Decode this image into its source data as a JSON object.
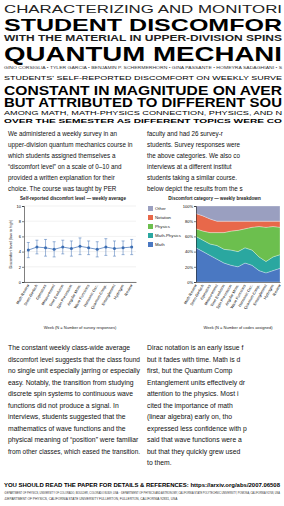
{
  "header": {
    "title": [
      "CHARACTERIZING AND MONITORI",
      "STUDENT DISCOMFOR",
      "WITH THE MATERIAL IN UPPER-DIVISION SPINS",
      "QUANTUM MECHANI"
    ],
    "authors": "GINO CORSIGLIA • TYLER GARCIA • BENJAMIN P. SCHERMERHORN • GINA PASSANTE • HOMEYRA SADAGHIANI • S"
  },
  "headline": {
    "lines": [
      "STUDENTS' SELF-REPORTED DISCOMFORT ON WEEKLY SURVE",
      "CONSTANT IN MAGNITUDE ON AVER",
      "BUT ATTRIBUTED TO DIFFERENT SOU",
      "AMONG MATH, MATH-PHYSICS CONNECTION, PHYSICS, AND N",
      "OVER THE SEMESTER AS DIFFERENT TOPICS WERE CO"
    ]
  },
  "intro": {
    "left": [
      "We administered a weekly survey in an",
      "upper-division quantum mechanics course in",
      "which students assigned themselves a",
      "“discomfort level” on a scale of 0–10 and",
      "provided a written explanation for their",
      "choice. The course was taught by PER"
    ],
    "right": [
      "faculty and had 26 survey-r",
      "students. Survey responses were",
      "the above categories. We also co",
      "interviews at a different institut",
      "students taking a similar course.",
      "below depict the results from the s"
    ]
  },
  "chart_data": [
    {
      "type": "line",
      "title": "Self-reported discomfort level — weekly average",
      "x_label": "Week (N = Number of survey responses)",
      "y_label": "Discomfort level (low to high)",
      "categories": [
        "Math Review",
        "Stern-Gerlach",
        "Operators",
        "Measurement",
        "Time Evolution",
        "Spin Precession",
        "Angular Mom.",
        "Wave Functions",
        "Harmonic Osc.",
        "Quantum Comp.",
        "Entanglement",
        "Hydrogen",
        "Review"
      ],
      "values": [
        4.2,
        4.6,
        4.5,
        4.3,
        4.6,
        4.4,
        4.7,
        4.5,
        4.3,
        4.6,
        4.4,
        4.5,
        4.6
      ],
      "errors": [
        1.0,
        0.9,
        1.1,
        1.0,
        0.9,
        1.0,
        1.1,
        0.9,
        1.0,
        1.1,
        1.0,
        0.9,
        1.0
      ],
      "color": "#3b6db3",
      "marker": "circle",
      "line_style": "solid",
      "ylim": [
        0,
        10
      ],
      "yticks": [
        0,
        2,
        4,
        6,
        8,
        10
      ],
      "grid": true
    },
    {
      "type": "area",
      "stacked": true,
      "title": "Discomfort category — weekly breakdown",
      "x_label": "Week (N = Number of codes assigned)",
      "categories": [
        "Math Review",
        "Stern-Gerlach",
        "Operators",
        "Measurement",
        "Time Evolution",
        "Spin Precession",
        "Angular Mom.",
        "Wave Functions",
        "Harmonic Osc.",
        "Quantum Comp.",
        "Entanglement",
        "Hydrogen",
        "Review"
      ],
      "series": [
        {
          "name": "Math",
          "color": "#4a78c2",
          "values": [
            45,
            40,
            35,
            30,
            25,
            22,
            20,
            25,
            22,
            15,
            12,
            15,
            18
          ]
        },
        {
          "name": "Math-Physics",
          "color": "#2aa7a0",
          "values": [
            15,
            15,
            15,
            18,
            18,
            20,
            20,
            20,
            20,
            18,
            15,
            18,
            18
          ]
        },
        {
          "name": "Physics",
          "color": "#6cbf4e",
          "values": [
            10,
            12,
            15,
            17,
            22,
            25,
            28,
            25,
            30,
            40,
            45,
            40,
            36
          ]
        },
        {
          "name": "Notation",
          "color": "#e8684a",
          "values": [
            20,
            20,
            18,
            15,
            15,
            13,
            12,
            10,
            8,
            7,
            8,
            7,
            8
          ]
        },
        {
          "name": "Other",
          "color": "#9a9fc0",
          "values": [
            10,
            13,
            17,
            20,
            20,
            20,
            20,
            20,
            20,
            20,
            20,
            20,
            20
          ]
        }
      ],
      "ylim": [
        0,
        100
      ],
      "yticks": [
        {
          "value": 0,
          "label": "0%"
        },
        {
          "value": 20,
          "label": "20%"
        },
        {
          "value": 40,
          "label": "40%"
        },
        {
          "value": 60,
          "label": "60%"
        },
        {
          "value": 80,
          "label": "80%"
        },
        {
          "value": 100,
          "label": "100%"
        }
      ],
      "legend": "left"
    }
  ],
  "discussion": {
    "left": [
      "The constant weekly class-wide average",
      "discomfort level suggests that the class found",
      "no single unit especially jarring or especially",
      "easy. Notably, the transition from studying",
      "discrete spin systems to continuous wave",
      "functions did not produce a signal. In",
      "interviews, students suggested that the",
      "mathematics of wave functions and the",
      "physical meaning of “position” were familiar",
      "from other classes, which eased the transition."
    ],
    "right": [
      "Dirac notation is an early issue f",
      "but it fades with time. Math is d",
      "first, but the Quantum Comp",
      "Entanglement units effectively dr",
      "attention to the physics. Most i",
      "cited the importance of math",
      "(linear algebra) early on, tho",
      "expressed less confidence with p",
      "said that wave functions were a",
      "but that they quickly grew used",
      "to them."
    ]
  },
  "footer": {
    "link": "YOU SHOULD READ THE PAPER FOR DETAILS & REFERENCES: https://arxiv.org/abs/2007.06508",
    "affiliations": [
      "¹DEPARTMENT OF PHYSICS, UNIVERSITY OF COLORADO, BOULDER, COLORADO 80309, USA · ²DEPARTMENT OF PHYSICS AND ASTRONOMY, CALIFORNIA STATE POLYTECHNIC UNIVERSITY, POMONA, CALIFORNIA 91768, USA",
      "³DEPARTMENT OF PHYSICS, CALIFORNIA STATE UNIVERSITY FULLERTON, FULLERTON, CALIFORNIA 92831, USA"
    ]
  }
}
